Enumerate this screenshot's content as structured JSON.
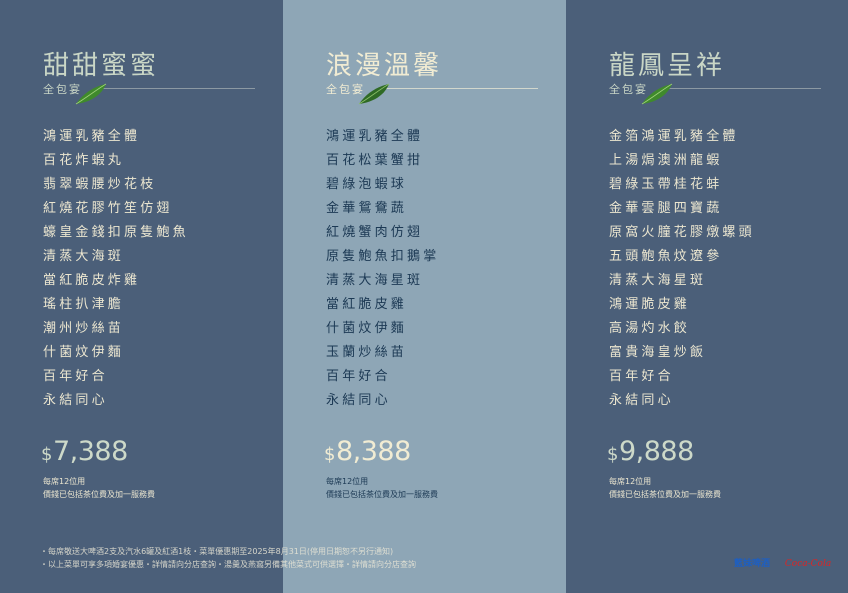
{
  "packages": [
    {
      "title": "甜甜蜜蜜",
      "subtitle": "全包宴",
      "items": [
        "鴻運乳豬全體",
        "百花炸蝦丸",
        "翡翠蝦腰炒花枝",
        "紅燒花膠竹笙仿翅",
        "蠔皇金錢扣原隻鮑魚",
        "清蒸大海斑",
        "當紅脆皮炸雞",
        "瑤柱扒津膽",
        "潮州炒絲苗",
        "什菌炆伊麵",
        "百年好合",
        "永結同心"
      ],
      "currency": "$",
      "price": "7,388",
      "note1": "每席12位用",
      "note2": "價錢已包括茶位費及加一服務費"
    },
    {
      "title": "浪漫溫馨",
      "subtitle": "全包宴",
      "items": [
        "鴻運乳豬全體",
        "百花松葉蟹拑",
        "碧綠泡蝦球",
        "金華鴛鴦蔬",
        "紅燒蟹肉仿翅",
        "原隻鮑魚扣鵝掌",
        "清蒸大海星斑",
        "當紅脆皮雞",
        "什菌炆伊麵",
        "玉蘭炒絲苗",
        "百年好合",
        "永結同心"
      ],
      "currency": "$",
      "price": "8,388",
      "note1": "每席12位用",
      "note2": "價錢已包括茶位費及加一服務費"
    },
    {
      "title": "龍鳳呈祥",
      "subtitle": "全包宴",
      "items": [
        "金箔鴻運乳豬全體",
        "上湯焗澳洲龍蝦",
        "碧綠玉帶桂花蚌",
        "金華雲腿四寶蔬",
        "原窩火朣花膠燉螺頭",
        "五頭鮑魚炆遼參",
        "清蒸大海星斑",
        "鴻運脆皮雞",
        "高湯灼水餃",
        "富貴海皇炒飯",
        "百年好合",
        "永結同心"
      ],
      "currency": "$",
      "price": "9,888",
      "note1": "每席12位用",
      "note2": "價錢已包括茶位費及加一服務費"
    }
  ],
  "footer": {
    "line1": "・每席敬送大啤酒2支及汽水6罐及紅酒1枝・菜單優惠期至2025年8月31日(停用日期恕不另行通知)",
    "line2": "・以上菜單可享多項婚宴優惠・詳情請向分店查詢・湯羹及燕窩另備其他菜式可供選擇・詳情請向分店查詢"
  },
  "logos": [
    "藍妹啤酒",
    "Coca-Cola"
  ],
  "colors": {
    "dark_panel": "#4b5f79",
    "light_panel": "#8ea6b6",
    "cream_text": "#ebe6d0",
    "navy_text": "#1c3954",
    "leaf": "#3f8a2c"
  }
}
